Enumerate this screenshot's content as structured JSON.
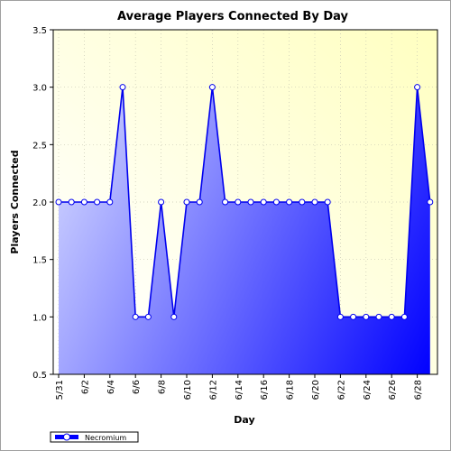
{
  "chart_data": {
    "type": "area",
    "title": "Average Players Connected By Day",
    "xlabel": "Day",
    "ylabel": "Players Connected",
    "ylim": [
      0.5,
      3.5
    ],
    "yticks": [
      0.5,
      1.0,
      1.5,
      2.0,
      2.5,
      3.0,
      3.5
    ],
    "ytick_labels": [
      "0.5",
      "1.0",
      "1.5",
      "2.0",
      "2.5",
      "3.0",
      "3.5"
    ],
    "x": [
      "5/31",
      "6/1",
      "6/2",
      "6/3",
      "6/4",
      "6/5",
      "6/6",
      "6/7",
      "6/8",
      "6/9",
      "6/10",
      "6/11",
      "6/12",
      "6/13",
      "6/14",
      "6/15",
      "6/16",
      "6/17",
      "6/18",
      "6/19",
      "6/20",
      "6/21",
      "6/22",
      "6/23",
      "6/24",
      "6/25",
      "6/26",
      "6/27",
      "6/28",
      "6/29"
    ],
    "xtick_labels": [
      "5/31",
      "6/2",
      "6/4",
      "6/6",
      "6/8",
      "6/10",
      "6/12",
      "6/14",
      "6/16",
      "6/18",
      "6/20",
      "6/22",
      "6/24",
      "6/26",
      "6/28"
    ],
    "series": [
      {
        "name": "Necromium",
        "values": [
          2,
          2,
          2,
          2,
          2,
          3,
          1,
          1,
          2,
          1,
          2,
          2,
          3,
          2,
          2,
          2,
          2,
          2,
          2,
          2,
          2,
          2,
          1,
          1,
          1,
          1,
          1,
          1,
          3,
          2
        ]
      }
    ],
    "legend_position": "bottom-left",
    "grid": true,
    "colors": {
      "line": "#0000ee",
      "fill_light": "#c4c8ff",
      "fill_dark": "#0000ff",
      "plot_bg_top": "#ffffc0",
      "plot_bg_bottom": "#ffffff"
    }
  }
}
